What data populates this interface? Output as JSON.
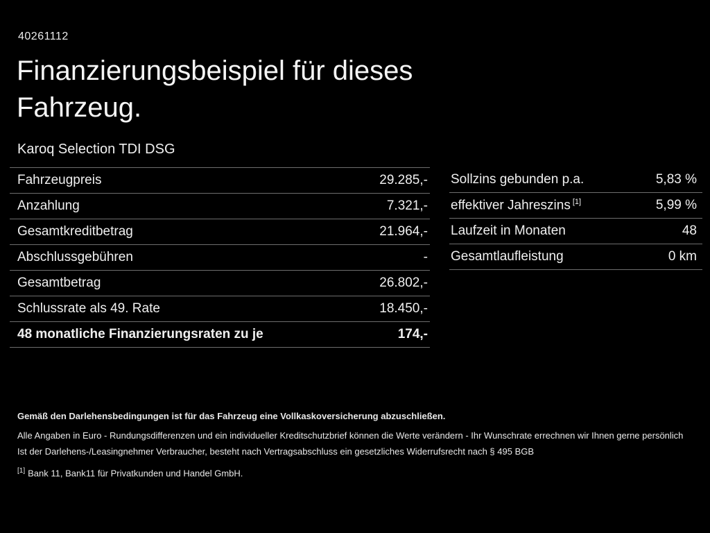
{
  "colors": {
    "background": "#000000",
    "text": "#f2f2f2",
    "divider": "#6e6e6e"
  },
  "header": {
    "document_id": "40261112",
    "title": "Finanzierungsbeispiel für dieses Fahrzeug.",
    "vehicle": "Karoq Selection TDI DSG"
  },
  "tables": {
    "left": {
      "rows": [
        {
          "label": "Fahrzeugpreis",
          "value": "29.285,-"
        },
        {
          "label": "Anzahlung",
          "value": "7.321,-"
        },
        {
          "label": "Gesamtkreditbetrag",
          "value": "21.964,-"
        },
        {
          "label": "Abschlussgebühren",
          "value": "-"
        },
        {
          "label": "Gesamtbetrag",
          "value": "26.802,-"
        },
        {
          "label": "Schlussrate als 49. Rate",
          "value": "18.450,-"
        },
        {
          "label": "48 monatliche Finanzierungsraten zu je",
          "value": "174,-"
        }
      ]
    },
    "right": {
      "rows": [
        {
          "label": "Sollzins gebunden p.a.",
          "value": "5,83 %"
        },
        {
          "label": "effektiver Jahreszins",
          "sup": "[1]",
          "value": "5,99 %"
        },
        {
          "label": "Laufzeit in Monaten",
          "value": "48"
        },
        {
          "label": "Gesamtlaufleistung",
          "value": "0 km"
        }
      ]
    }
  },
  "footer": {
    "insurance_note": "Gemäß den Darlehensbedingungen ist für das Fahrzeug eine Vollkaskoversicherung abzuschließen.",
    "disclaimer1": "Alle Angaben in Euro - Rundungsdifferenzen und ein individueller Kreditschutzbrief können die Werte verändern - Ihr Wunschrate errechnen wir Ihnen gerne persönlich",
    "disclaimer2": "Ist der Darlehens-/Leasingnehmer Verbraucher, besteht nach Vertragsabschluss ein gesetzliches Widerrufsrecht nach § 495 BGB",
    "footnote_marker": "[1]",
    "footnote_text": "Bank 11, Bank11 für Privatkunden und Handel GmbH."
  }
}
